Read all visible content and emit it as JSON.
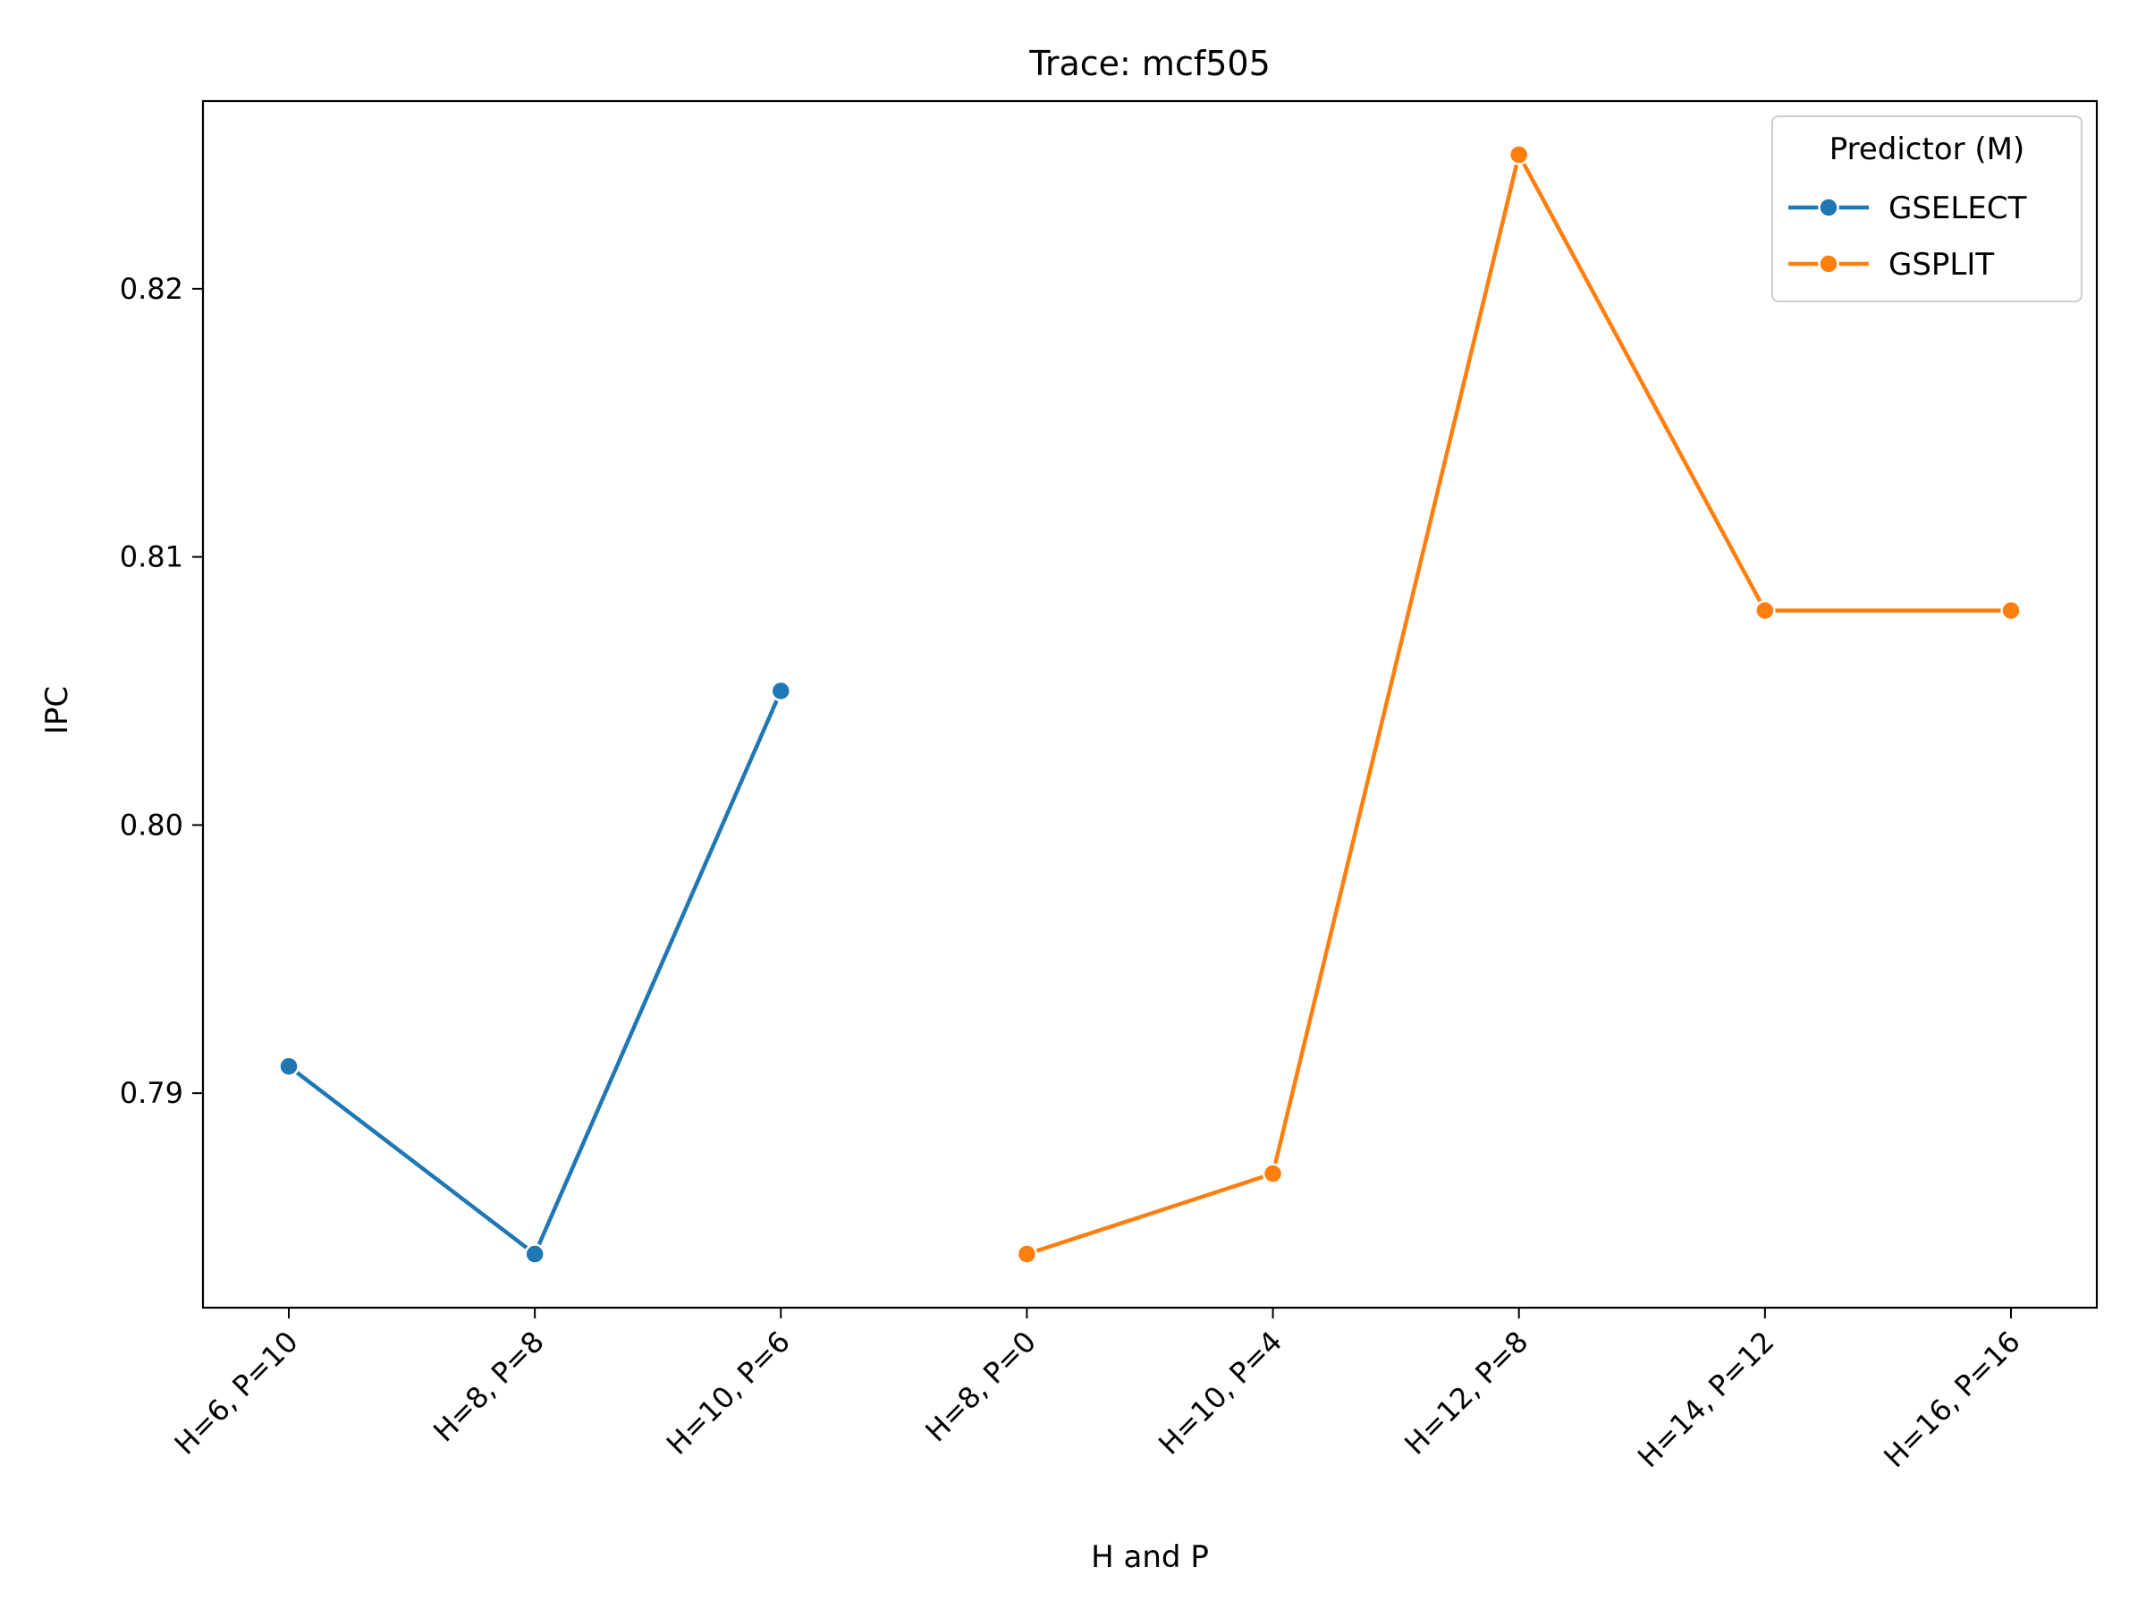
{
  "chart_data": {
    "type": "line",
    "title": "Trace: mcf505",
    "xlabel": "H and P",
    "ylabel": "IPC",
    "categories": [
      "H=6, P=10",
      "H=8, P=8",
      "H=10, P=6",
      "H=8, P=0",
      "H=10, P=4",
      "H=12, P=8",
      "H=14, P=12",
      "H=16, P=16"
    ],
    "ylim": [
      0.782,
      0.827
    ],
    "yticks": [
      0.79,
      0.8,
      0.81,
      0.82
    ],
    "ytick_labels": [
      "0.79",
      "0.80",
      "0.81",
      "0.82"
    ],
    "grid": false,
    "legend": {
      "title": "Predictor (M)",
      "placement": "top-right"
    },
    "series": [
      {
        "name": "GSELECT",
        "color": "#1f77b4",
        "x": [
          "H=6, P=10",
          "H=8, P=8",
          "H=10, P=6"
        ],
        "values": [
          0.791,
          0.784,
          0.805
        ]
      },
      {
        "name": "GSPLIT",
        "color": "#ff7f0e",
        "x": [
          "H=8, P=0",
          "H=10, P=4",
          "H=12, P=8",
          "H=14, P=12",
          "H=16, P=16"
        ],
        "values": [
          0.784,
          0.787,
          0.825,
          0.808,
          0.808
        ]
      }
    ]
  }
}
